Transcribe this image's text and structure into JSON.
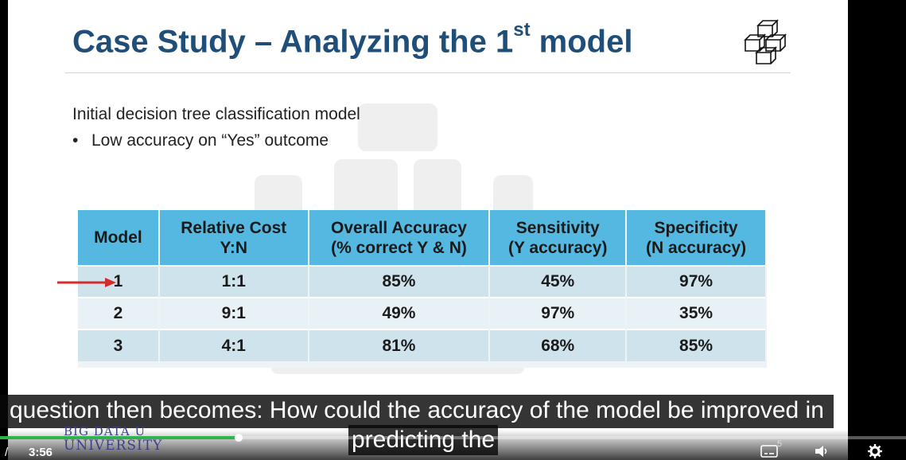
{
  "slide": {
    "title_main": "Case Study – Analyzing the 1",
    "title_sup": "st",
    "title_end": " model",
    "intro": "Initial decision tree classification model",
    "bullet_mark": "•",
    "bullet": "Low accuracy on “Yes” outcome"
  },
  "table": {
    "headers": [
      {
        "l1": "Model",
        "l2": ""
      },
      {
        "l1": "Relative Cost",
        "l2": "Y:N"
      },
      {
        "l1": "Overall Accuracy",
        "l2": "(% correct Y & N)"
      },
      {
        "l1": "Sensitivity",
        "l2": "(Y accuracy)"
      },
      {
        "l1": "Specificity",
        "l2": "(N accuracy)"
      }
    ],
    "rows": [
      [
        "1",
        "1:1",
        "85%",
        "45%",
        "97%"
      ],
      [
        "2",
        "9:1",
        "49%",
        "97%",
        "35%"
      ],
      [
        "3",
        "4:1",
        "81%",
        "68%",
        "85%"
      ]
    ]
  },
  "caption": {
    "line1": "question then becomes: How could the accuracy of the model be improved in",
    "line2": "predicting the"
  },
  "player": {
    "time": "3:56",
    "slash": "/",
    "progress_fraction": 0.263,
    "slide_number": "5"
  },
  "logo": {
    "line1": "BIG DATA U",
    "line2": "UNIVERSITY"
  },
  "colors": {
    "title": "#1f4e79",
    "table_header": "#55b8e0",
    "arrow": "#d62b2b",
    "progress": "#2fb34a"
  }
}
